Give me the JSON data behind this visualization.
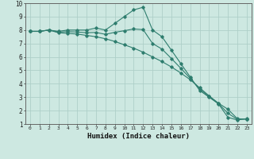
{
  "xlabel": "Humidex (Indice chaleur)",
  "ylabel": "",
  "xlim": [
    -0.5,
    23.5
  ],
  "ylim": [
    1,
    10
  ],
  "xticks": [
    0,
    1,
    2,
    3,
    4,
    5,
    6,
    7,
    8,
    9,
    10,
    11,
    12,
    13,
    14,
    15,
    16,
    17,
    18,
    19,
    20,
    21,
    22,
    23
  ],
  "yticks": [
    1,
    2,
    3,
    4,
    5,
    6,
    7,
    8,
    9,
    10
  ],
  "line_color": "#2e7d6e",
  "bg_color": "#cde8e1",
  "grid_color": "#aed0c8",
  "series": [
    {
      "x": [
        0,
        1,
        2,
        3,
        4,
        5,
        6,
        7,
        8,
        9,
        10,
        11,
        12,
        13,
        14,
        15,
        16,
        17,
        18,
        19,
        20,
        21,
        22,
        23
      ],
      "y": [
        7.9,
        7.9,
        8.0,
        7.9,
        8.0,
        8.0,
        8.0,
        8.15,
        8.0,
        8.5,
        9.0,
        9.5,
        9.7,
        8.0,
        7.5,
        6.5,
        5.5,
        4.5,
        3.5,
        3.0,
        2.5,
        1.5,
        1.3,
        1.4
      ]
    },
    {
      "x": [
        0,
        1,
        2,
        3,
        4,
        5,
        6,
        7,
        8,
        9,
        10,
        11,
        12,
        13,
        14,
        15,
        16,
        17,
        18,
        19,
        20,
        21,
        22,
        23
      ],
      "y": [
        7.9,
        7.9,
        8.0,
        7.8,
        7.75,
        7.7,
        7.6,
        7.5,
        7.35,
        7.15,
        6.9,
        6.65,
        6.35,
        6.0,
        5.65,
        5.25,
        4.8,
        4.3,
        3.7,
        3.1,
        2.55,
        2.1,
        1.4,
        1.35
      ]
    },
    {
      "x": [
        0,
        1,
        2,
        3,
        4,
        5,
        6,
        7,
        8,
        9,
        10,
        11,
        12,
        13,
        14,
        15,
        16,
        17,
        18,
        19,
        20,
        21,
        22,
        23
      ],
      "y": [
        7.9,
        7.9,
        8.0,
        7.85,
        7.88,
        7.85,
        7.8,
        7.82,
        7.68,
        7.83,
        7.95,
        8.08,
        8.03,
        7.0,
        6.58,
        5.88,
        5.15,
        4.4,
        3.6,
        3.05,
        2.52,
        1.8,
        1.35,
        1.38
      ]
    }
  ]
}
